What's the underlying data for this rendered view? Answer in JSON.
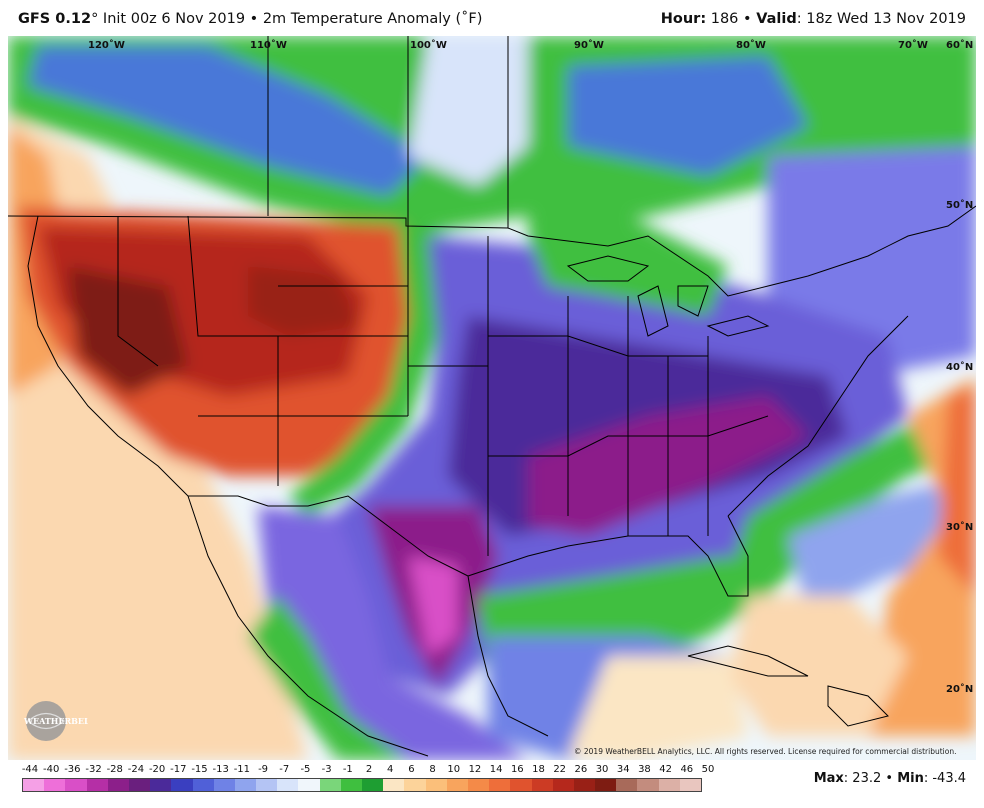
{
  "header": {
    "model_prefix": "GFS 0.12",
    "degree": "°",
    "init_text": " Init 00z 6 Nov 2019 • 2m Temperature Anomaly (˚F)",
    "hour_label": "Hour:",
    "hour_value": " 186 • ",
    "valid_label": "Valid",
    "valid_value": ": 18z Wed 13 Nov 2019"
  },
  "map": {
    "longitude_labels": [
      "120˚W",
      "110˚W",
      "100˚W",
      "90˚W",
      "80˚W",
      "70˚W",
      "60˚N"
    ],
    "latitude_labels": [
      "50˚N",
      "40˚N",
      "30˚N",
      "20˚N"
    ]
  },
  "copyright": "© 2019 WeatherBELL Analytics, LLC. All rights reserved. License required for commercial distribution.",
  "logo_text": "WEATHERBELL",
  "legend": {
    "labels": [
      "-44",
      "-40",
      "-36",
      "-32",
      "-28",
      "-24",
      "-20",
      "-17",
      "-15",
      "-13",
      "-11",
      "-9",
      "-7",
      "-5",
      "-3",
      "-1",
      "2",
      "4",
      "6",
      "8",
      "10",
      "12",
      "14",
      "16",
      "18",
      "22",
      "26",
      "30",
      "34",
      "38",
      "42",
      "46",
      "50"
    ],
    "colors": [
      "#f5a0e6",
      "#ee6fd9",
      "#d94fc7",
      "#b52fa6",
      "#8c1f8a",
      "#6a1f7e",
      "#4b2a9a",
      "#3a3fc0",
      "#5060d8",
      "#6f82e6",
      "#8fa4ee",
      "#b4c4f4",
      "#d8e4fa",
      "#f0f6fb",
      "#7ad67a",
      "#3fbf3f",
      "#1e9e32",
      "#fbe6c4",
      "#fcd39a",
      "#fbbf7a",
      "#f8a45d",
      "#f48a48",
      "#ee6e3a",
      "#e0532e",
      "#cc3b24",
      "#b5281c",
      "#992016",
      "#7e1c12",
      "#a86a5a",
      "#c38c7e",
      "#dcb0a6",
      "#e9c6bf"
    ]
  },
  "maxmin": {
    "max_label": "Max",
    "max_value": ": 23.2 • ",
    "min_label": "Min",
    "min_value": ": -43.4"
  }
}
